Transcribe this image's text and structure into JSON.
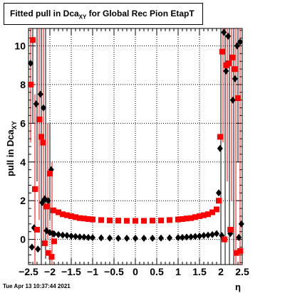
{
  "title": {
    "prefix": "Fitted pull in Dca",
    "subscript": "XY",
    "suffix": " for Global Rec Pion EtapT"
  },
  "ylabel": {
    "main": "pull in Dca",
    "subscript": "XY"
  },
  "xlabel": "η",
  "footer": "Tue Apr 13 10:37:44 2021",
  "colors": {
    "mean": "#000000",
    "sigma": "#ff0000",
    "grid": "#000000"
  },
  "chart_data": {
    "type": "scatter",
    "xlim": [
      -2.5,
      2.5
    ],
    "ylim": [
      -1.3,
      10.9
    ],
    "grid": true,
    "x_ticks": [
      "−2.5",
      "−2",
      "−1.5",
      "−1",
      "−0.5",
      "0",
      "0.5",
      "1",
      "1.5",
      "2",
      "2.5"
    ],
    "y_ticks": [
      "0",
      "2",
      "4",
      "6",
      "8",
      "10"
    ],
    "series": [
      {
        "marker": "diamond",
        "color": "#000000",
        "points": [
          [
            -2.45,
            9.1
          ],
          [
            -2.42,
            -0.4
          ],
          [
            -2.37,
            0.6
          ],
          [
            -2.32,
            7.0
          ],
          [
            -2.28,
            -0.5
          ],
          [
            -2.22,
            7.5
          ],
          [
            -2.18,
            1.9
          ],
          [
            -2.15,
            6.8
          ],
          [
            -2.12,
            2.1
          ],
          [
            -2.08,
            0.45
          ],
          [
            -2.04,
            2.0
          ],
          [
            -2.0,
            0.35
          ],
          [
            -1.97,
            3.6
          ],
          [
            -1.93,
            0.3
          ],
          [
            -1.9,
            0.28
          ],
          [
            -1.8,
            0.25
          ],
          [
            -1.7,
            0.22
          ],
          [
            -1.6,
            0.2
          ],
          [
            -1.5,
            0.17
          ],
          [
            -1.4,
            0.15
          ],
          [
            -1.3,
            0.13
          ],
          [
            -1.2,
            0.12
          ],
          [
            -1.1,
            0.1
          ],
          [
            -1.0,
            0.09
          ],
          [
            -0.8,
            0.08
          ],
          [
            -0.6,
            0.07
          ],
          [
            -0.4,
            0.06
          ],
          [
            -0.2,
            0.06
          ],
          [
            0.0,
            0.06
          ],
          [
            0.2,
            0.06
          ],
          [
            0.4,
            0.06
          ],
          [
            0.6,
            0.07
          ],
          [
            0.8,
            0.08
          ],
          [
            1.0,
            0.09
          ],
          [
            1.1,
            0.1
          ],
          [
            1.2,
            0.12
          ],
          [
            1.3,
            0.13
          ],
          [
            1.4,
            0.15
          ],
          [
            1.5,
            0.17
          ],
          [
            1.6,
            0.2
          ],
          [
            1.7,
            0.22
          ],
          [
            1.8,
            0.25
          ],
          [
            1.9,
            0.3
          ],
          [
            1.95,
            2.4
          ],
          [
            1.98,
            4.7
          ],
          [
            2.02,
            0.2
          ],
          [
            2.07,
            10.7
          ],
          [
            2.12,
            8.7
          ],
          [
            2.17,
            10.5
          ],
          [
            2.22,
            0.3
          ],
          [
            2.28,
            7.2
          ],
          [
            2.33,
            8.3
          ],
          [
            2.38,
            10.0
          ],
          [
            2.42,
            0.1
          ],
          [
            2.45,
            10.2
          ],
          [
            2.48,
            0.8
          ]
        ]
      },
      {
        "marker": "square",
        "color": "#ff0000",
        "points": [
          [
            -2.45,
            8.0
          ],
          [
            -2.4,
            10.3
          ],
          [
            -2.35,
            2.6
          ],
          [
            -2.3,
            0.5
          ],
          [
            -2.25,
            6.2
          ],
          [
            -2.2,
            5.3
          ],
          [
            -2.16,
            5.0
          ],
          [
            -2.12,
            -0.2
          ],
          [
            -2.08,
            1.7
          ],
          [
            -2.04,
            -0.7
          ],
          [
            -2.0,
            3.4
          ],
          [
            -1.96,
            -0.9
          ],
          [
            -1.92,
            1.5
          ],
          [
            -1.9,
            -0.1
          ],
          [
            -1.8,
            1.4
          ],
          [
            -1.7,
            1.3
          ],
          [
            -1.6,
            1.25
          ],
          [
            -1.5,
            1.2
          ],
          [
            -1.4,
            1.15
          ],
          [
            -1.3,
            1.1
          ],
          [
            -1.2,
            1.08
          ],
          [
            -1.1,
            1.05
          ],
          [
            -1.0,
            1.03
          ],
          [
            -0.8,
            1.0
          ],
          [
            -0.6,
            0.98
          ],
          [
            -0.4,
            0.97
          ],
          [
            -0.2,
            0.96
          ],
          [
            0.0,
            0.96
          ],
          [
            0.2,
            0.96
          ],
          [
            0.4,
            0.97
          ],
          [
            0.6,
            0.98
          ],
          [
            0.8,
            1.0
          ],
          [
            1.0,
            1.03
          ],
          [
            1.1,
            1.05
          ],
          [
            1.2,
            1.08
          ],
          [
            1.3,
            1.1
          ],
          [
            1.4,
            1.15
          ],
          [
            1.5,
            1.2
          ],
          [
            1.6,
            1.25
          ],
          [
            1.7,
            1.3
          ],
          [
            1.8,
            1.4
          ],
          [
            1.9,
            1.55
          ],
          [
            1.95,
            2.0
          ],
          [
            1.98,
            5.3
          ],
          [
            2.03,
            9.7
          ],
          [
            2.08,
            0.0
          ],
          [
            2.13,
            9.0
          ],
          [
            2.18,
            9.1
          ],
          [
            2.22,
            0.5
          ],
          [
            2.27,
            9.4
          ],
          [
            2.32,
            8.8
          ],
          [
            2.36,
            -0.7
          ],
          [
            2.4,
            7.3
          ],
          [
            2.45,
            -0.6
          ]
        ]
      }
    ],
    "error_bars": [
      [
        -2.45,
        5.0,
        10.9
      ],
      [
        -2.4,
        6.0,
        10.9
      ],
      [
        -2.35,
        -1.3,
        7.5
      ],
      [
        -2.3,
        3.0,
        10.9
      ],
      [
        -2.25,
        1.0,
        10.9
      ],
      [
        -2.2,
        -1.3,
        10.9
      ],
      [
        -2.15,
        0.0,
        10.9
      ],
      [
        -2.1,
        -1.0,
        10.9
      ],
      [
        -2.05,
        0.0,
        6.0
      ],
      [
        -2.0,
        1.0,
        6.0
      ],
      [
        -1.95,
        -1.3,
        4.0
      ],
      [
        2.0,
        -1.3,
        10.9
      ],
      [
        2.05,
        5.0,
        10.9
      ],
      [
        2.1,
        -1.3,
        10.9
      ],
      [
        2.15,
        3.0,
        10.9
      ],
      [
        2.2,
        -1.3,
        10.9
      ],
      [
        2.25,
        2.0,
        10.9
      ],
      [
        2.3,
        -1.3,
        10.9
      ],
      [
        2.35,
        -1.3,
        10.9
      ],
      [
        2.4,
        4.0,
        10.9
      ],
      [
        2.45,
        -1.3,
        10.9
      ]
    ]
  }
}
